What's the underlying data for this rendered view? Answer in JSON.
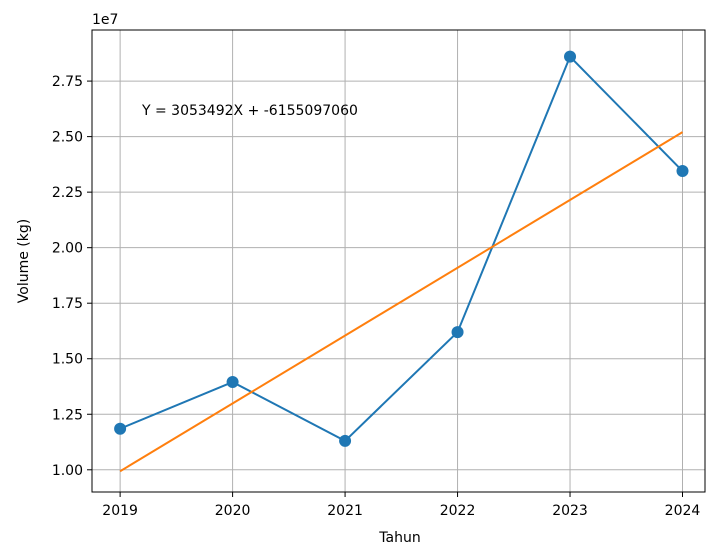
{
  "chart_data": {
    "type": "line",
    "title": "",
    "xlabel": "Tahun",
    "ylabel": "Volume (kg)",
    "y_offset_label": "1e7",
    "x_ticks": [
      "2019",
      "2020",
      "2021",
      "2022",
      "2023",
      "2024"
    ],
    "y_ticks": [
      "1.00",
      "1.25",
      "1.50",
      "1.75",
      "2.00",
      "2.25",
      "2.50",
      "2.75"
    ],
    "y_tick_values": [
      10000000,
      12500000,
      15000000,
      17500000,
      20000000,
      22500000,
      25000000,
      27500000
    ],
    "xlim": [
      2018.75,
      2024.2
    ],
    "ylim": [
      9000000,
      29800000
    ],
    "grid": true,
    "annotation": "Y = 3053492X + -6155097060",
    "series": [
      {
        "x": [
          2019,
          2020,
          2021,
          2022,
          2023,
          2024
        ],
        "values": [
          11850000,
          13950000,
          11300000,
          16200000,
          28600000,
          23450000
        ],
        "color": "#1f77b4",
        "markers": true
      },
      {
        "x": [
          2019,
          2024
        ],
        "values": [
          9935000,
          25202000
        ],
        "color": "#ff7f0e",
        "markers": false
      }
    ]
  }
}
